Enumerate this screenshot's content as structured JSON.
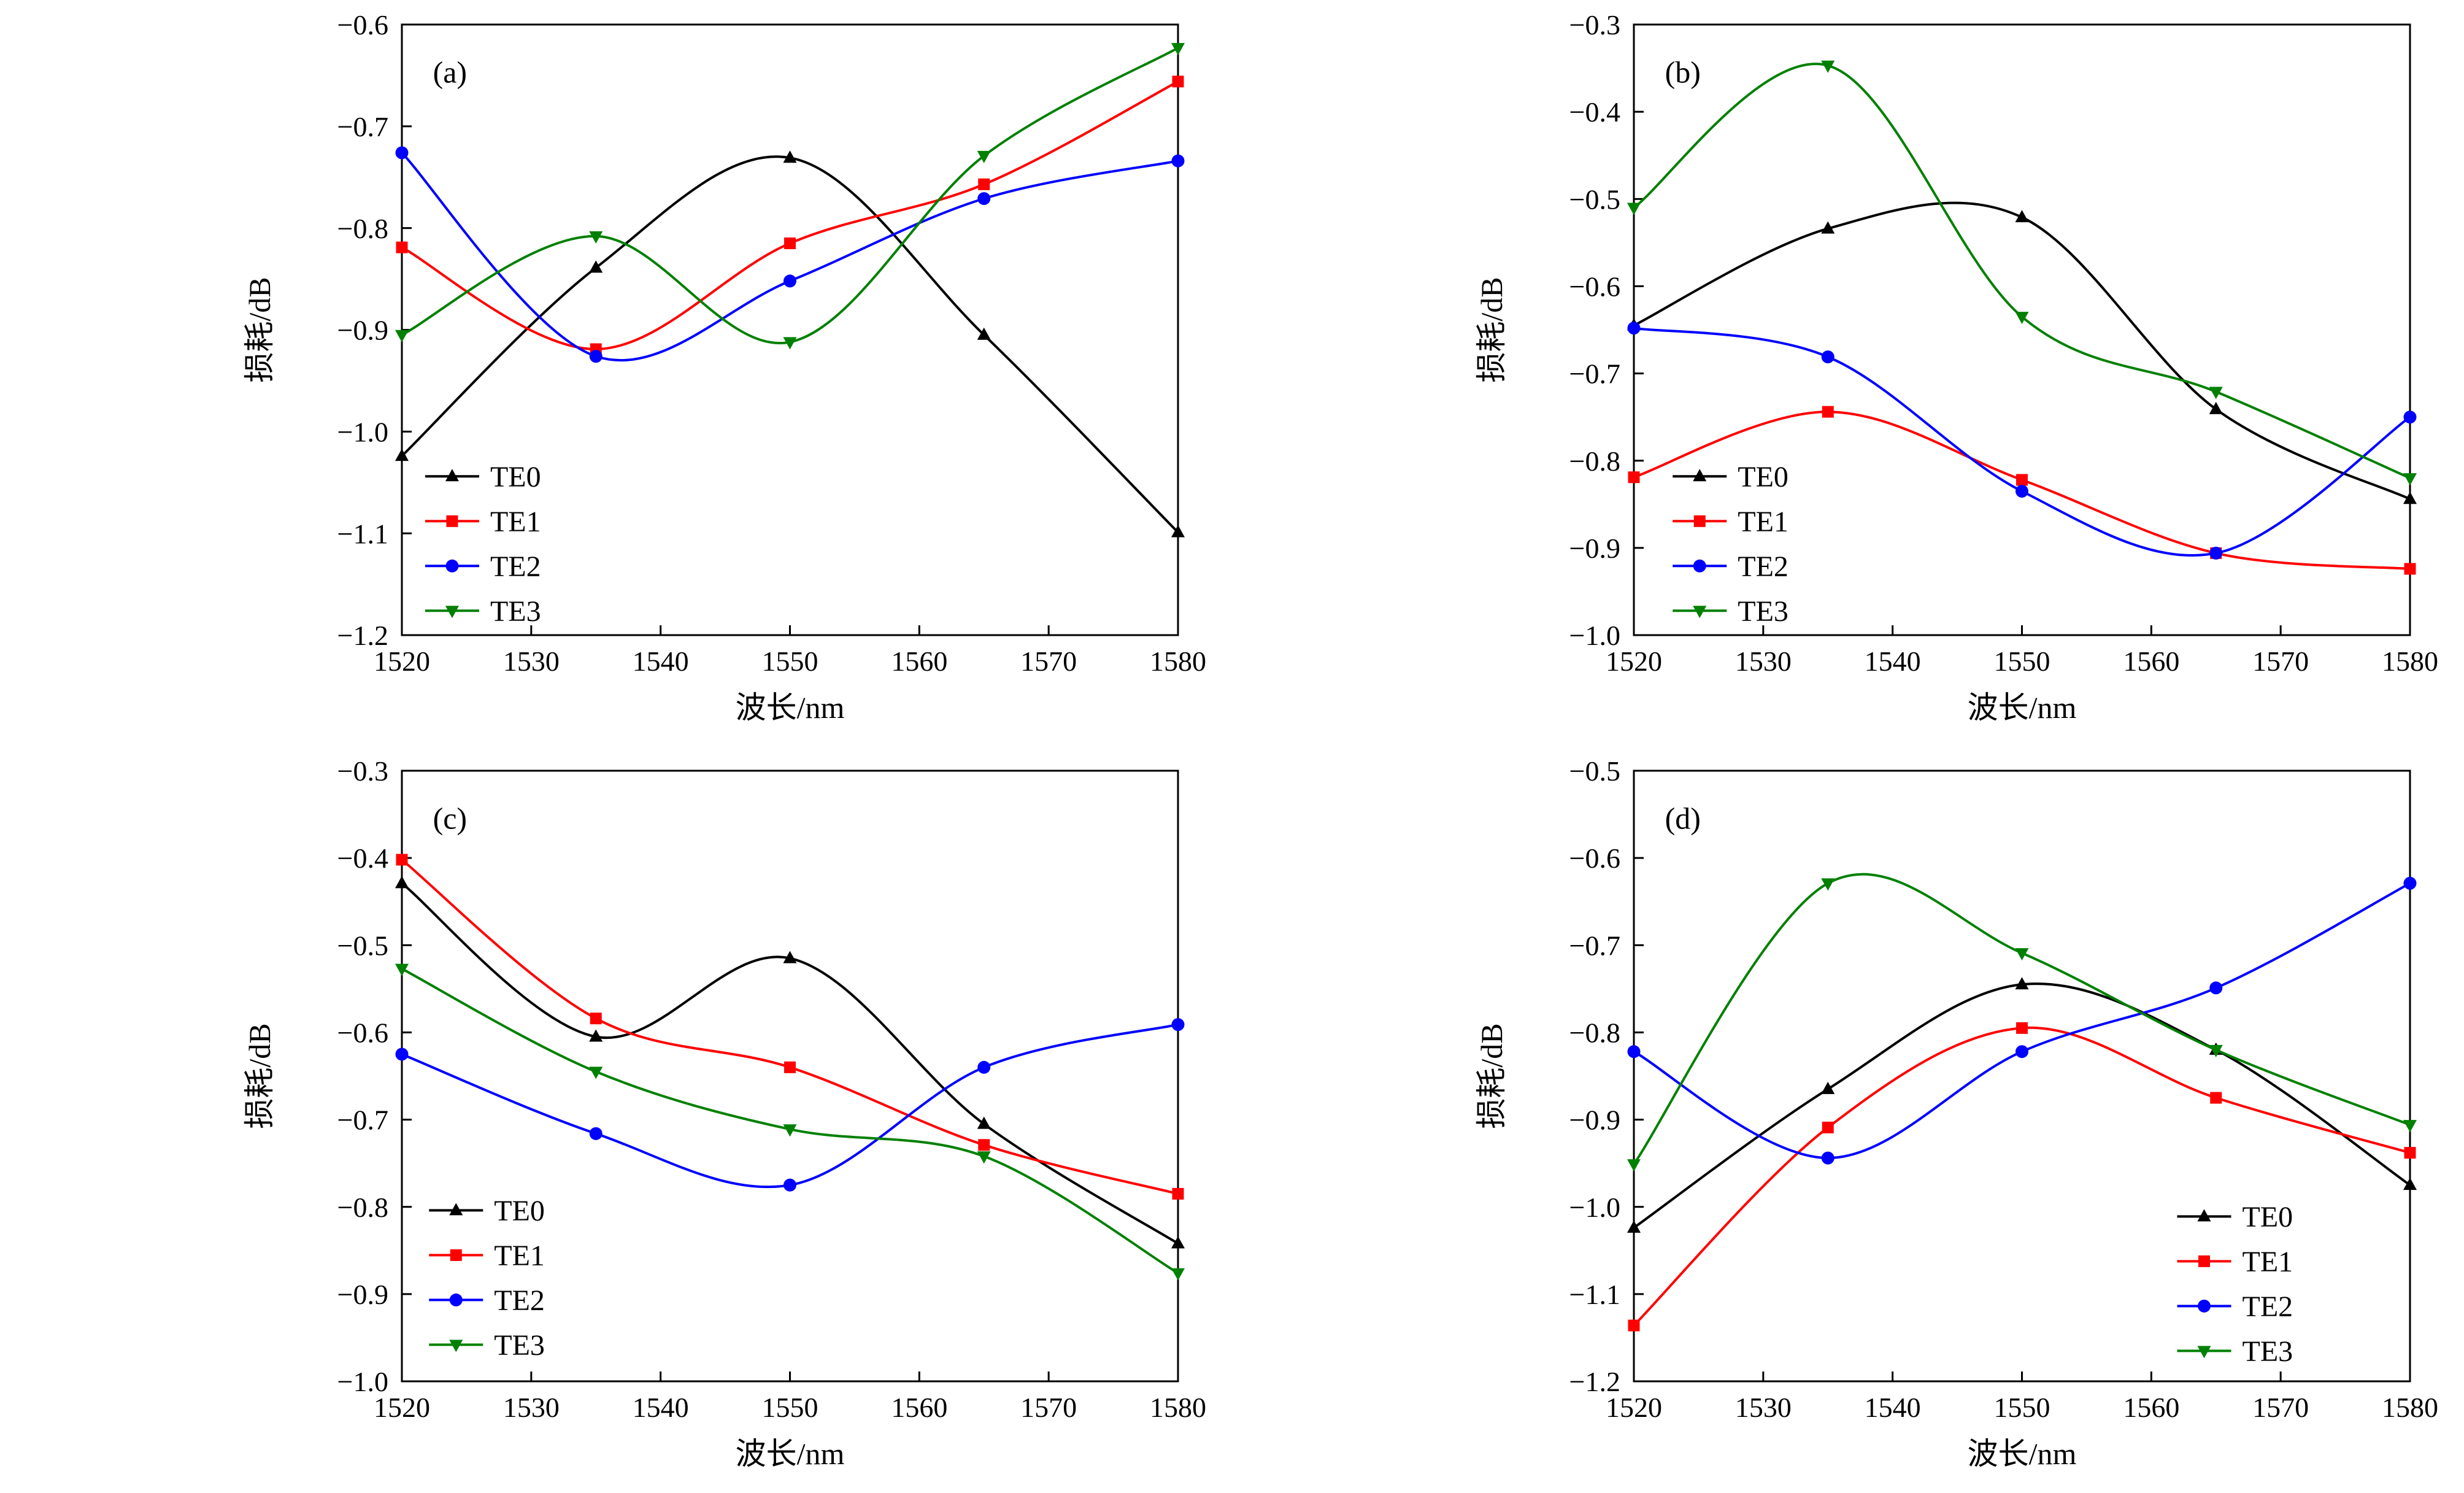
{
  "figure": {
    "background": "#ffffff",
    "series_colors": {
      "TE0": "#000000",
      "TE1": "#ff0000",
      "TE2": "#0000ff",
      "TE3": "#008000"
    }
  },
  "chart_data": [
    {
      "type": "line",
      "panel_label": "(a)",
      "xlabel": "波长/nm",
      "ylabel": "损耗/dB",
      "xlim": [
        1520,
        1580
      ],
      "ylim": [
        -1.2,
        -0.6
      ],
      "xticks": [
        1520,
        1530,
        1540,
        1550,
        1560,
        1570,
        1580
      ],
      "yticks": [
        -1.2,
        -1.1,
        -1.0,
        -0.9,
        -0.8,
        -0.7,
        -0.6
      ],
      "x": [
        1520,
        1535,
        1550,
        1565,
        1580
      ],
      "grid": false,
      "legend": {
        "position": "left-bottom",
        "fx": 0.03,
        "fy": 0.74
      },
      "series": [
        {
          "name": "TE0",
          "color": "#000000",
          "marker": "triangle-up",
          "values": [
            -1.024,
            -0.839,
            -0.731,
            -0.905,
            -1.099
          ]
        },
        {
          "name": "TE1",
          "color": "#ff0000",
          "marker": "square",
          "values": [
            -0.819,
            -0.919,
            -0.815,
            -0.757,
            -0.656
          ]
        },
        {
          "name": "TE2",
          "color": "#0000ff",
          "marker": "circle",
          "values": [
            -0.726,
            -0.926,
            -0.852,
            -0.771,
            -0.734
          ]
        },
        {
          "name": "TE3",
          "color": "#008000",
          "marker": "triangle-down",
          "values": [
            -0.905,
            -0.808,
            -0.912,
            -0.729,
            -0.623
          ]
        }
      ]
    },
    {
      "type": "line",
      "panel_label": "(b)",
      "xlabel": "波长/nm",
      "ylabel": "损耗/dB",
      "xlim": [
        1520,
        1580
      ],
      "ylim": [
        -1.0,
        -0.3
      ],
      "xticks": [
        1520,
        1530,
        1540,
        1550,
        1560,
        1570,
        1580
      ],
      "yticks": [
        -1.0,
        -0.9,
        -0.8,
        -0.7,
        -0.6,
        -0.5,
        -0.4,
        -0.3
      ],
      "x": [
        1520,
        1535,
        1550,
        1565,
        1580
      ],
      "grid": false,
      "legend": {
        "position": "left-bottom",
        "fx": 0.05,
        "fy": 0.74
      },
      "series": [
        {
          "name": "TE0",
          "color": "#000000",
          "marker": "triangle-up",
          "values": [
            -0.645,
            -0.534,
            -0.521,
            -0.741,
            -0.844
          ]
        },
        {
          "name": "TE1",
          "color": "#ff0000",
          "marker": "square",
          "values": [
            -0.819,
            -0.744,
            -0.822,
            -0.906,
            -0.924
          ]
        },
        {
          "name": "TE2",
          "color": "#0000ff",
          "marker": "circle",
          "values": [
            -0.648,
            -0.681,
            -0.835,
            -0.906,
            -0.75
          ]
        },
        {
          "name": "TE3",
          "color": "#008000",
          "marker": "triangle-down",
          "values": [
            -0.51,
            -0.347,
            -0.635,
            -0.721,
            -0.82
          ]
        }
      ]
    },
    {
      "type": "line",
      "panel_label": "(c)",
      "xlabel": "波长/nm",
      "ylabel": "损耗/dB",
      "xlim": [
        1520,
        1580
      ],
      "ylim": [
        -1.0,
        -0.3
      ],
      "xticks": [
        1520,
        1530,
        1540,
        1550,
        1560,
        1570,
        1580
      ],
      "yticks": [
        -1.0,
        -0.9,
        -0.8,
        -0.7,
        -0.6,
        -0.5,
        -0.4,
        -0.3
      ],
      "x": [
        1520,
        1535,
        1550,
        1565,
        1580
      ],
      "grid": false,
      "legend": {
        "position": "left-bottom",
        "fx": 0.035,
        "fy": 0.72
      },
      "series": [
        {
          "name": "TE0",
          "color": "#000000",
          "marker": "triangle-up",
          "values": [
            -0.429,
            -0.605,
            -0.515,
            -0.705,
            -0.842
          ]
        },
        {
          "name": "TE1",
          "color": "#ff0000",
          "marker": "square",
          "values": [
            -0.402,
            -0.584,
            -0.64,
            -0.729,
            -0.785
          ]
        },
        {
          "name": "TE2",
          "color": "#0000ff",
          "marker": "circle",
          "values": [
            -0.625,
            -0.716,
            -0.775,
            -0.64,
            -0.591
          ]
        },
        {
          "name": "TE3",
          "color": "#008000",
          "marker": "triangle-down",
          "values": [
            -0.527,
            -0.645,
            -0.711,
            -0.742,
            -0.876
          ]
        }
      ]
    },
    {
      "type": "line",
      "panel_label": "(d)",
      "xlabel": "波长/nm",
      "ylabel": "损耗/dB",
      "xlim": [
        1520,
        1580
      ],
      "ylim": [
        -1.2,
        -0.5
      ],
      "xticks": [
        1520,
        1530,
        1540,
        1550,
        1560,
        1570,
        1580
      ],
      "yticks": [
        -1.2,
        -1.1,
        -1.0,
        -0.9,
        -0.8,
        -0.7,
        -0.6,
        -0.5
      ],
      "x": [
        1520,
        1535,
        1550,
        1565,
        1580
      ],
      "grid": false,
      "legend": {
        "position": "right-bottom",
        "fx": 0.7,
        "fy": 0.73
      },
      "series": [
        {
          "name": "TE0",
          "color": "#000000",
          "marker": "triangle-up",
          "values": [
            -1.024,
            -0.865,
            -0.745,
            -0.82,
            -0.975
          ]
        },
        {
          "name": "TE1",
          "color": "#ff0000",
          "marker": "square",
          "values": [
            -1.136,
            -0.909,
            -0.795,
            -0.875,
            -0.938
          ]
        },
        {
          "name": "TE2",
          "color": "#0000ff",
          "marker": "circle",
          "values": [
            -0.822,
            -0.944,
            -0.822,
            -0.749,
            -0.629
          ]
        },
        {
          "name": "TE3",
          "color": "#008000",
          "marker": "triangle-down",
          "values": [
            -0.951,
            -0.629,
            -0.709,
            -0.82,
            -0.906
          ]
        }
      ]
    }
  ]
}
